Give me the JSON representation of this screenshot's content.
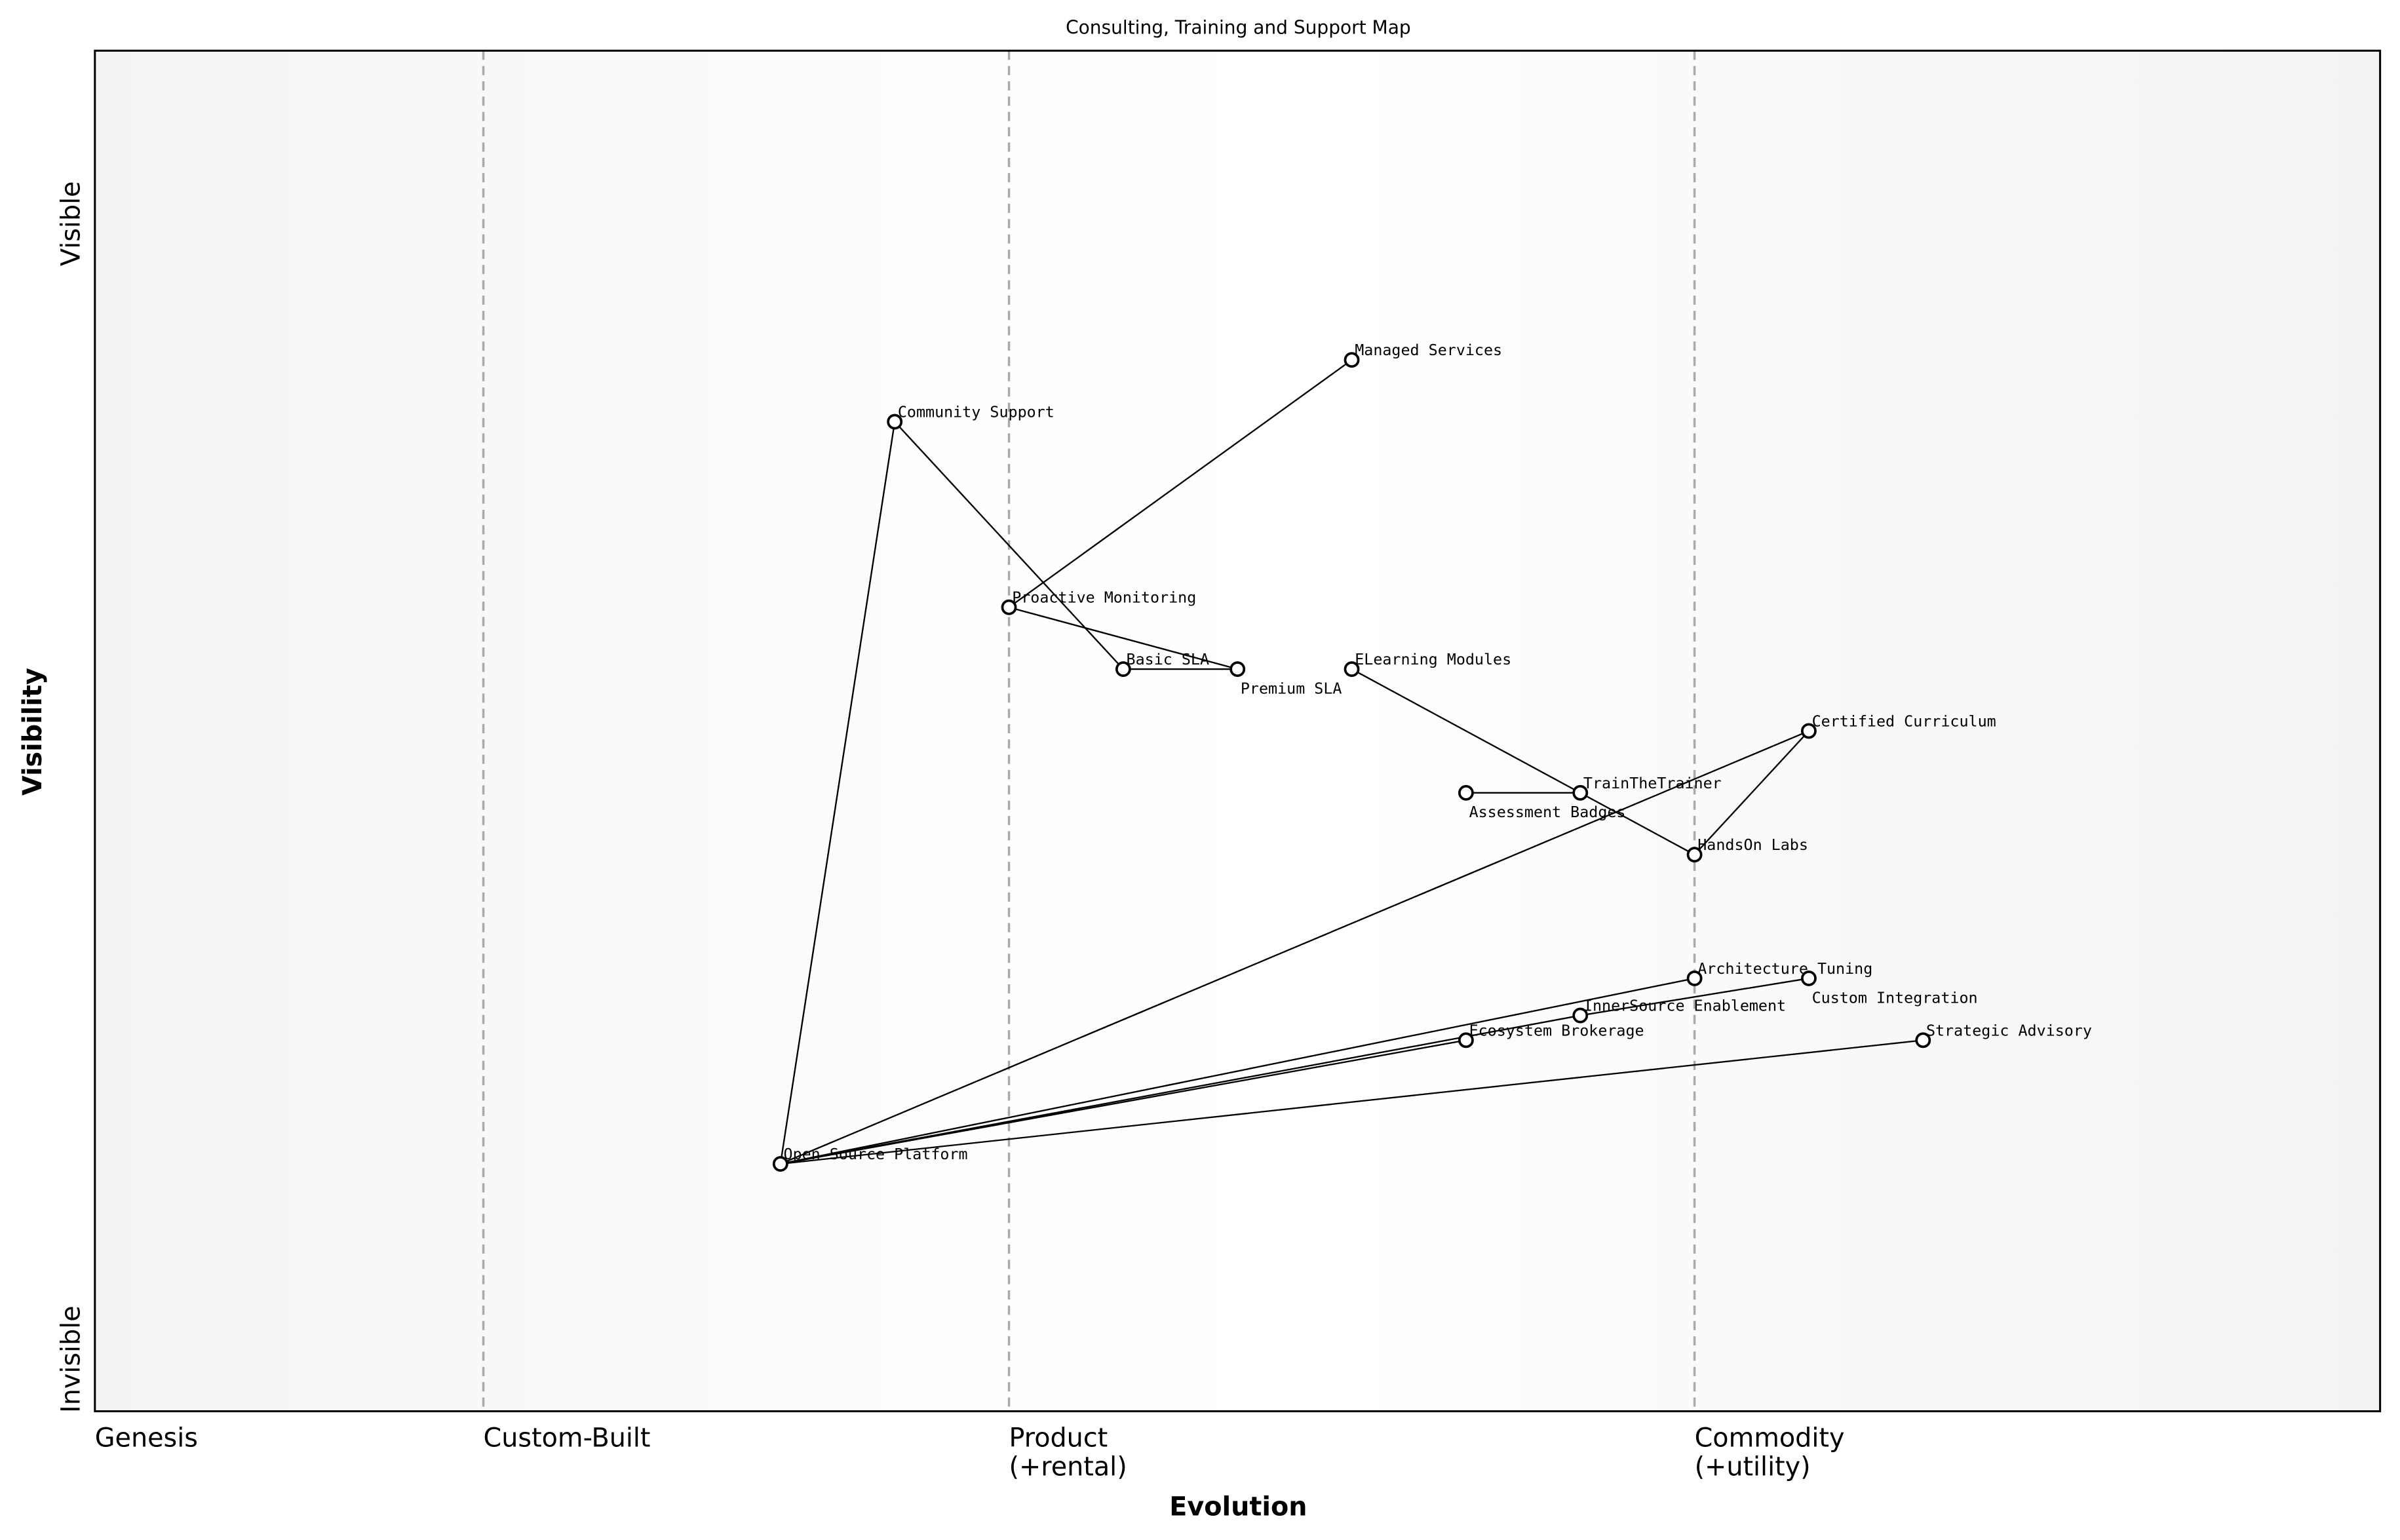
{
  "chart_data": {
    "type": "wardley-map",
    "title": "Consulting, Training and Support Map",
    "xlabel": "Evolution",
    "ylabel": "Visibility",
    "y_top_label": "Visible",
    "y_bottom_label": "Invisible",
    "xlim": [
      0,
      1
    ],
    "ylim": [
      0,
      1.1
    ],
    "stages": [
      {
        "label": "Genesis",
        "x": 0
      },
      {
        "label": "Custom-Built",
        "x": 0.17
      },
      {
        "label": "Product\n(+rental)",
        "x": 0.4
      },
      {
        "label": "Commodity\n(+utility)",
        "x": 0.7
      }
    ],
    "nodes": [
      {
        "name": "Managed Services",
        "x": 0.55,
        "y": 0.85
      },
      {
        "name": "Community Support",
        "x": 0.35,
        "y": 0.8
      },
      {
        "name": "Proactive Monitoring",
        "x": 0.4,
        "y": 0.65
      },
      {
        "name": "Basic SLA",
        "x": 0.45,
        "y": 0.6
      },
      {
        "name": "Premium SLA",
        "x": 0.5,
        "y": 0.6
      },
      {
        "name": "ELearning Modules",
        "x": 0.55,
        "y": 0.6
      },
      {
        "name": "Certified Curriculum",
        "x": 0.75,
        "y": 0.55
      },
      {
        "name": "Assessment Badges",
        "x": 0.6,
        "y": 0.5
      },
      {
        "name": "TrainTheTrainer",
        "x": 0.65,
        "y": 0.5
      },
      {
        "name": "HandsOn Labs",
        "x": 0.7,
        "y": 0.45
      },
      {
        "name": "Architecture Tuning",
        "x": 0.7,
        "y": 0.35
      },
      {
        "name": "Custom Integration",
        "x": 0.75,
        "y": 0.35
      },
      {
        "name": "InnerSource Enablement",
        "x": 0.65,
        "y": 0.32
      },
      {
        "name": "Ecosystem Brokerage",
        "x": 0.6,
        "y": 0.3
      },
      {
        "name": "Strategic Advisory",
        "x": 0.8,
        "y": 0.3
      },
      {
        "name": "Open Source Platform",
        "x": 0.3,
        "y": 0.2
      }
    ],
    "edges": [
      [
        "Community Support",
        "Open Source Platform"
      ],
      [
        "Community Support",
        "Basic SLA"
      ],
      [
        "Basic SLA",
        "Premium SLA"
      ],
      [
        "Premium SLA",
        "Proactive Monitoring"
      ],
      [
        "Proactive Monitoring",
        "Managed Services"
      ],
      [
        "ELearning Modules",
        "HandsOn Labs"
      ],
      [
        "HandsOn Labs",
        "Certified Curriculum"
      ],
      [
        "Certified Curriculum",
        "Open Source Platform"
      ],
      [
        "Assessment Badges",
        "TrainTheTrainer"
      ],
      [
        "Open Source Platform",
        "Architecture Tuning"
      ],
      [
        "Open Source Platform",
        "Ecosystem Brokerage"
      ],
      [
        "Open Source Platform",
        "InnerSource Enablement"
      ],
      [
        "InnerSource Enablement",
        "Custom Integration"
      ],
      [
        "Open Source Platform",
        "Strategic Advisory"
      ]
    ],
    "colors": {
      "edge": "#000000",
      "node_fill": "#ffffff",
      "divider": "#aaaaaa",
      "band_edge": "#f2f2f2"
    }
  }
}
